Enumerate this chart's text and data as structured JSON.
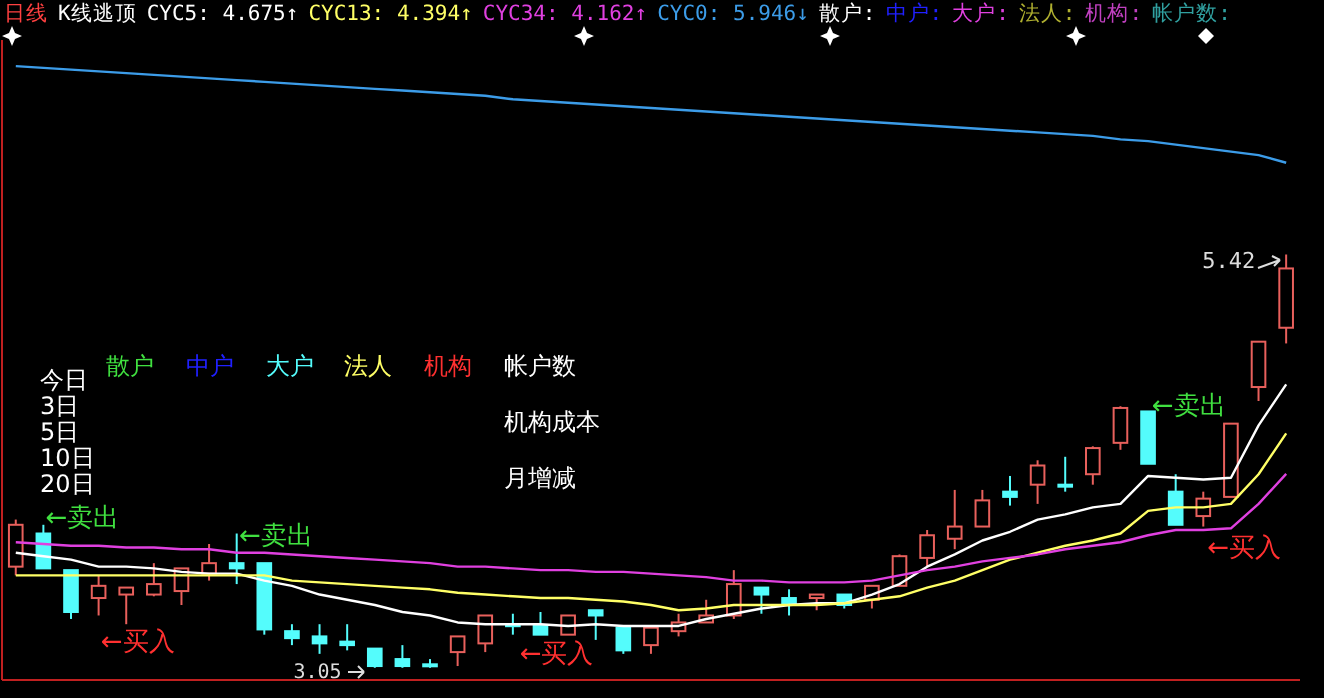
{
  "chart_data": {
    "type": "candlestick",
    "title": "日线",
    "subtitle": "K线逃顶",
    "categories": [
      null,
      null,
      null,
      null,
      null,
      null,
      null,
      null,
      null,
      null,
      null,
      null,
      null,
      null,
      null,
      null,
      null,
      null,
      null,
      null,
      null,
      null,
      null,
      null,
      null,
      null,
      null,
      null,
      null,
      null,
      null,
      null,
      null,
      null,
      null,
      null,
      null,
      null,
      null,
      null,
      null,
      null,
      null,
      null,
      null,
      null,
      null
    ],
    "ohlc": [
      [
        3.63,
        3.9,
        3.58,
        3.87
      ],
      [
        3.82,
        3.87,
        3.62,
        3.62
      ],
      [
        3.61,
        3.61,
        3.33,
        3.37
      ],
      [
        3.45,
        3.58,
        3.35,
        3.52
      ],
      [
        3.47,
        3.51,
        3.3,
        3.51
      ],
      [
        3.47,
        3.65,
        3.46,
        3.53
      ],
      [
        3.49,
        3.62,
        3.41,
        3.62
      ],
      [
        3.59,
        3.76,
        3.55,
        3.65
      ],
      [
        3.65,
        3.82,
        3.53,
        3.62
      ],
      [
        3.65,
        3.65,
        3.24,
        3.27
      ],
      [
        3.26,
        3.3,
        3.18,
        3.22
      ],
      [
        3.23,
        3.3,
        3.13,
        3.19
      ],
      [
        3.2,
        3.3,
        3.15,
        3.18
      ],
      [
        3.16,
        3.16,
        3.05,
        3.06
      ],
      [
        3.1,
        3.18,
        3.05,
        3.06
      ],
      [
        3.07,
        3.1,
        3.05,
        3.06
      ],
      [
        3.14,
        3.23,
        3.06,
        3.23
      ],
      [
        3.19,
        3.35,
        3.14,
        3.35
      ],
      [
        3.3,
        3.36,
        3.24,
        3.29
      ],
      [
        3.29,
        3.37,
        3.24,
        3.24
      ],
      [
        3.24,
        3.35,
        3.24,
        3.35
      ],
      [
        3.38,
        3.38,
        3.21,
        3.35
      ],
      [
        3.28,
        3.28,
        3.13,
        3.15
      ],
      [
        3.18,
        3.28,
        3.13,
        3.28
      ],
      [
        3.26,
        3.36,
        3.23,
        3.31
      ],
      [
        3.31,
        3.44,
        3.31,
        3.35
      ],
      [
        3.35,
        3.61,
        3.33,
        3.53
      ],
      [
        3.51,
        3.51,
        3.36,
        3.47
      ],
      [
        3.45,
        3.5,
        3.35,
        3.41
      ],
      [
        3.45,
        3.47,
        3.38,
        3.47
      ],
      [
        3.47,
        3.47,
        3.39,
        3.41
      ],
      [
        3.44,
        3.52,
        3.39,
        3.52
      ],
      [
        3.52,
        3.7,
        3.52,
        3.69
      ],
      [
        3.68,
        3.84,
        3.63,
        3.81
      ],
      [
        3.79,
        4.07,
        3.73,
        3.86
      ],
      [
        3.86,
        4.07,
        3.86,
        4.01
      ],
      [
        4.06,
        4.15,
        3.98,
        4.03
      ],
      [
        4.1,
        4.24,
        3.99,
        4.21
      ],
      [
        4.1,
        4.26,
        4.06,
        4.09
      ],
      [
        4.16,
        4.32,
        4.1,
        4.31
      ],
      [
        4.34,
        4.55,
        4.3,
        4.54
      ],
      [
        4.52,
        4.52,
        4.22,
        4.22
      ],
      [
        4.06,
        4.16,
        3.87,
        3.87
      ],
      [
        3.92,
        4.06,
        3.86,
        4.02
      ],
      [
        4.03,
        4.45,
        4.03,
        4.45
      ],
      [
        4.66,
        4.92,
        4.58,
        4.92
      ],
      [
        5.0,
        5.42,
        4.91,
        5.34
      ]
    ],
    "colors": [
      "#e8605c",
      "#54fcfc",
      "#54fcfc",
      "#e8605c",
      "#e8605c",
      "#e8605c",
      "#e8605c",
      "#e8605c",
      "#54fcfc",
      "#54fcfc",
      "#54fcfc",
      "#54fcfc",
      "#54fcfc",
      "#54fcfc",
      "#54fcfc",
      "#54fcfc",
      "#e8605c",
      "#e8605c",
      "#54fcfc",
      "#54fcfc",
      "#e8605c",
      "#54fcfc",
      "#54fcfc",
      "#e8605c",
      "#e8605c",
      "#e8605c",
      "#e8605c",
      "#54fcfc",
      "#54fcfc",
      "#e8605c",
      "#54fcfc",
      "#e8605c",
      "#e8605c",
      "#e8605c",
      "#e8605c",
      "#e8605c",
      "#54fcfc",
      "#e8605c",
      "#54fcfc",
      "#e8605c",
      "#e8605c",
      "#54fcfc",
      "#54fcfc",
      "#e8605c",
      "#e8605c",
      "#e8605c",
      "#e8605c"
    ],
    "series": [
      {
        "name": "CYC5: 4.675↑",
        "type": "line",
        "color": "#ffffff",
        "values": [
          3.71,
          3.69,
          3.67,
          3.63,
          3.63,
          3.62,
          3.6,
          3.59,
          3.59,
          3.55,
          3.52,
          3.47,
          3.44,
          3.41,
          3.37,
          3.35,
          3.31,
          3.3,
          3.3,
          3.3,
          3.29,
          3.3,
          3.29,
          3.29,
          3.29,
          3.33,
          3.36,
          3.39,
          3.41,
          3.42,
          3.42,
          3.47,
          3.53,
          3.63,
          3.7,
          3.78,
          3.83,
          3.9,
          3.93,
          3.97,
          3.99,
          4.15,
          4.14,
          4.13,
          4.14,
          4.44,
          4.675
        ]
      },
      {
        "name": "CYC13: 4.394↑",
        "type": "line",
        "color": "#ffff66",
        "values": [
          3.58,
          3.58,
          3.58,
          3.58,
          3.58,
          3.58,
          3.58,
          3.58,
          3.58,
          3.58,
          3.55,
          3.54,
          3.53,
          3.52,
          3.51,
          3.5,
          3.48,
          3.47,
          3.46,
          3.45,
          3.45,
          3.44,
          3.43,
          3.41,
          3.38,
          3.39,
          3.41,
          3.41,
          3.41,
          3.41,
          3.42,
          3.44,
          3.46,
          3.51,
          3.55,
          3.61,
          3.67,
          3.71,
          3.75,
          3.78,
          3.82,
          3.95,
          3.97,
          3.97,
          3.99,
          4.16,
          4.394
        ]
      },
      {
        "name": "CYC34: 4.162↑",
        "type": "line",
        "color": "#e040e0",
        "values": [
          3.77,
          3.76,
          3.75,
          3.75,
          3.74,
          3.74,
          3.73,
          3.73,
          3.71,
          3.71,
          3.7,
          3.69,
          3.68,
          3.67,
          3.66,
          3.65,
          3.63,
          3.63,
          3.62,
          3.61,
          3.61,
          3.6,
          3.6,
          3.59,
          3.58,
          3.57,
          3.55,
          3.55,
          3.54,
          3.54,
          3.54,
          3.55,
          3.58,
          3.61,
          3.63,
          3.66,
          3.68,
          3.7,
          3.73,
          3.75,
          3.77,
          3.81,
          3.84,
          3.84,
          3.85,
          3.99,
          4.162
        ]
      },
      {
        "name": "CYC0: 5.946↓",
        "type": "line",
        "color": "#3c9ce8",
        "values": [
          6.5,
          6.49,
          6.48,
          6.47,
          6.46,
          6.45,
          6.44,
          6.43,
          6.42,
          6.41,
          6.4,
          6.39,
          6.38,
          6.37,
          6.36,
          6.35,
          6.34,
          6.33,
          6.31,
          6.3,
          6.29,
          6.28,
          6.27,
          6.26,
          6.25,
          6.24,
          6.23,
          6.22,
          6.21,
          6.2,
          6.19,
          6.18,
          6.17,
          6.16,
          6.15,
          6.14,
          6.13,
          6.12,
          6.11,
          6.1,
          6.08,
          6.07,
          6.05,
          6.03,
          6.01,
          5.99,
          5.946
        ]
      }
    ],
    "ylim": [
      2.98,
      6.65
    ],
    "tick_labels": false,
    "legend": "top",
    "marker": "none",
    "annotations": [
      "散户:",
      "中户:",
      "大户:",
      "法人:",
      "机构:",
      "帐户数:",
      "散户",
      "中户",
      "大户",
      "法人",
      "机构",
      "帐户数",
      "今日",
      "3日",
      "5日",
      "10日",
      "20日",
      "机构成本",
      "月增减",
      "←卖出",
      "←卖出",
      "←卖出",
      "←买入",
      "←买入",
      "←买入",
      "5.42",
      "3.05"
    ]
  }
}
